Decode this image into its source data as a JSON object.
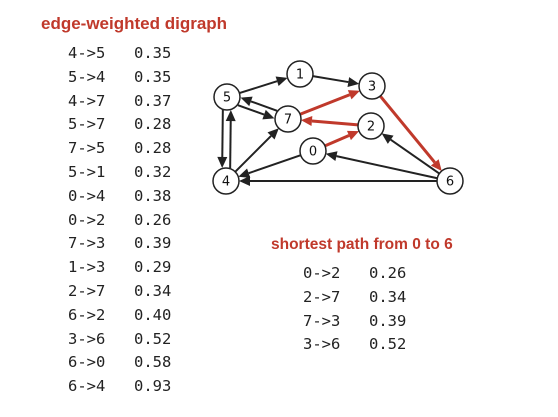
{
  "title": "edge-weighted digraph",
  "edges": [
    {
      "label": "4->5",
      "weight": "0.35"
    },
    {
      "label": "5->4",
      "weight": "0.35"
    },
    {
      "label": "4->7",
      "weight": "0.37"
    },
    {
      "label": "5->7",
      "weight": "0.28"
    },
    {
      "label": "7->5",
      "weight": "0.28"
    },
    {
      "label": "5->1",
      "weight": "0.32"
    },
    {
      "label": "0->4",
      "weight": "0.38"
    },
    {
      "label": "0->2",
      "weight": "0.26"
    },
    {
      "label": "7->3",
      "weight": "0.39"
    },
    {
      "label": "1->3",
      "weight": "0.29"
    },
    {
      "label": "2->7",
      "weight": "0.34"
    },
    {
      "label": "6->2",
      "weight": "0.40"
    },
    {
      "label": "3->6",
      "weight": "0.52"
    },
    {
      "label": "6->0",
      "weight": "0.58"
    },
    {
      "label": "6->4",
      "weight": "0.93"
    }
  ],
  "shortest_path": {
    "title": "shortest path from 0 to 6",
    "edges": [
      {
        "label": "0->2",
        "weight": "0.26"
      },
      {
        "label": "2->7",
        "weight": "0.34"
      },
      {
        "label": "7->3",
        "weight": "0.39"
      },
      {
        "label": "3->6",
        "weight": "0.52"
      }
    ]
  },
  "graph": {
    "nodes": [
      "0",
      "1",
      "2",
      "3",
      "4",
      "5",
      "6",
      "7"
    ],
    "colors": {
      "edge": "#222222",
      "path_edge": "#c0392b",
      "title": "#c0392b"
    }
  }
}
